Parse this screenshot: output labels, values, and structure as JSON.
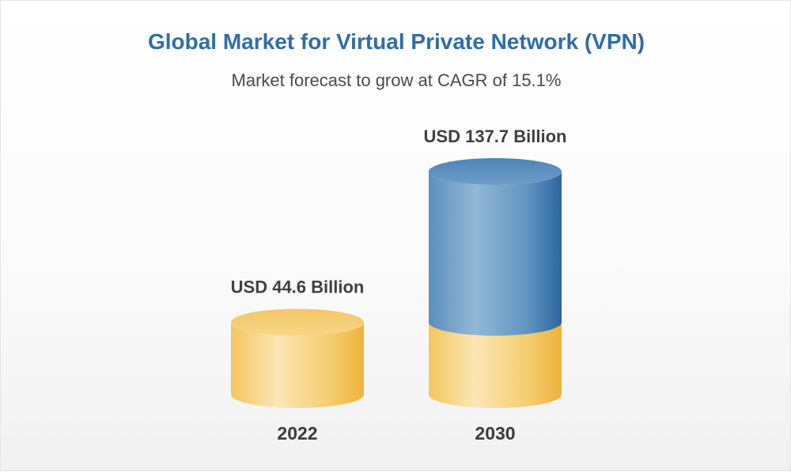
{
  "chart_data": {
    "type": "bar",
    "title": "Global Market for Virtual Private Network (VPN)",
    "subtitle": "Market forecast to grow at CAGR of 15.1%",
    "categories": [
      "2022",
      "2030"
    ],
    "values": [
      44.6,
      137.7
    ],
    "value_labels": [
      "USD 44.6 Billion",
      "USD 137.7 Billion"
    ],
    "unit": "USD Billion",
    "xlabel": "",
    "ylabel": "",
    "ylim": [
      0,
      137.7
    ]
  },
  "colors": {
    "title": "#2f6ea7",
    "gold_light": "#fbe4b0",
    "gold_mid": "#f5cf72",
    "gold_dark": "#eeb53f",
    "blue_light": "#8fb4d2",
    "blue_mid": "#5e93c1",
    "blue_dark": "#2c6aa0"
  }
}
